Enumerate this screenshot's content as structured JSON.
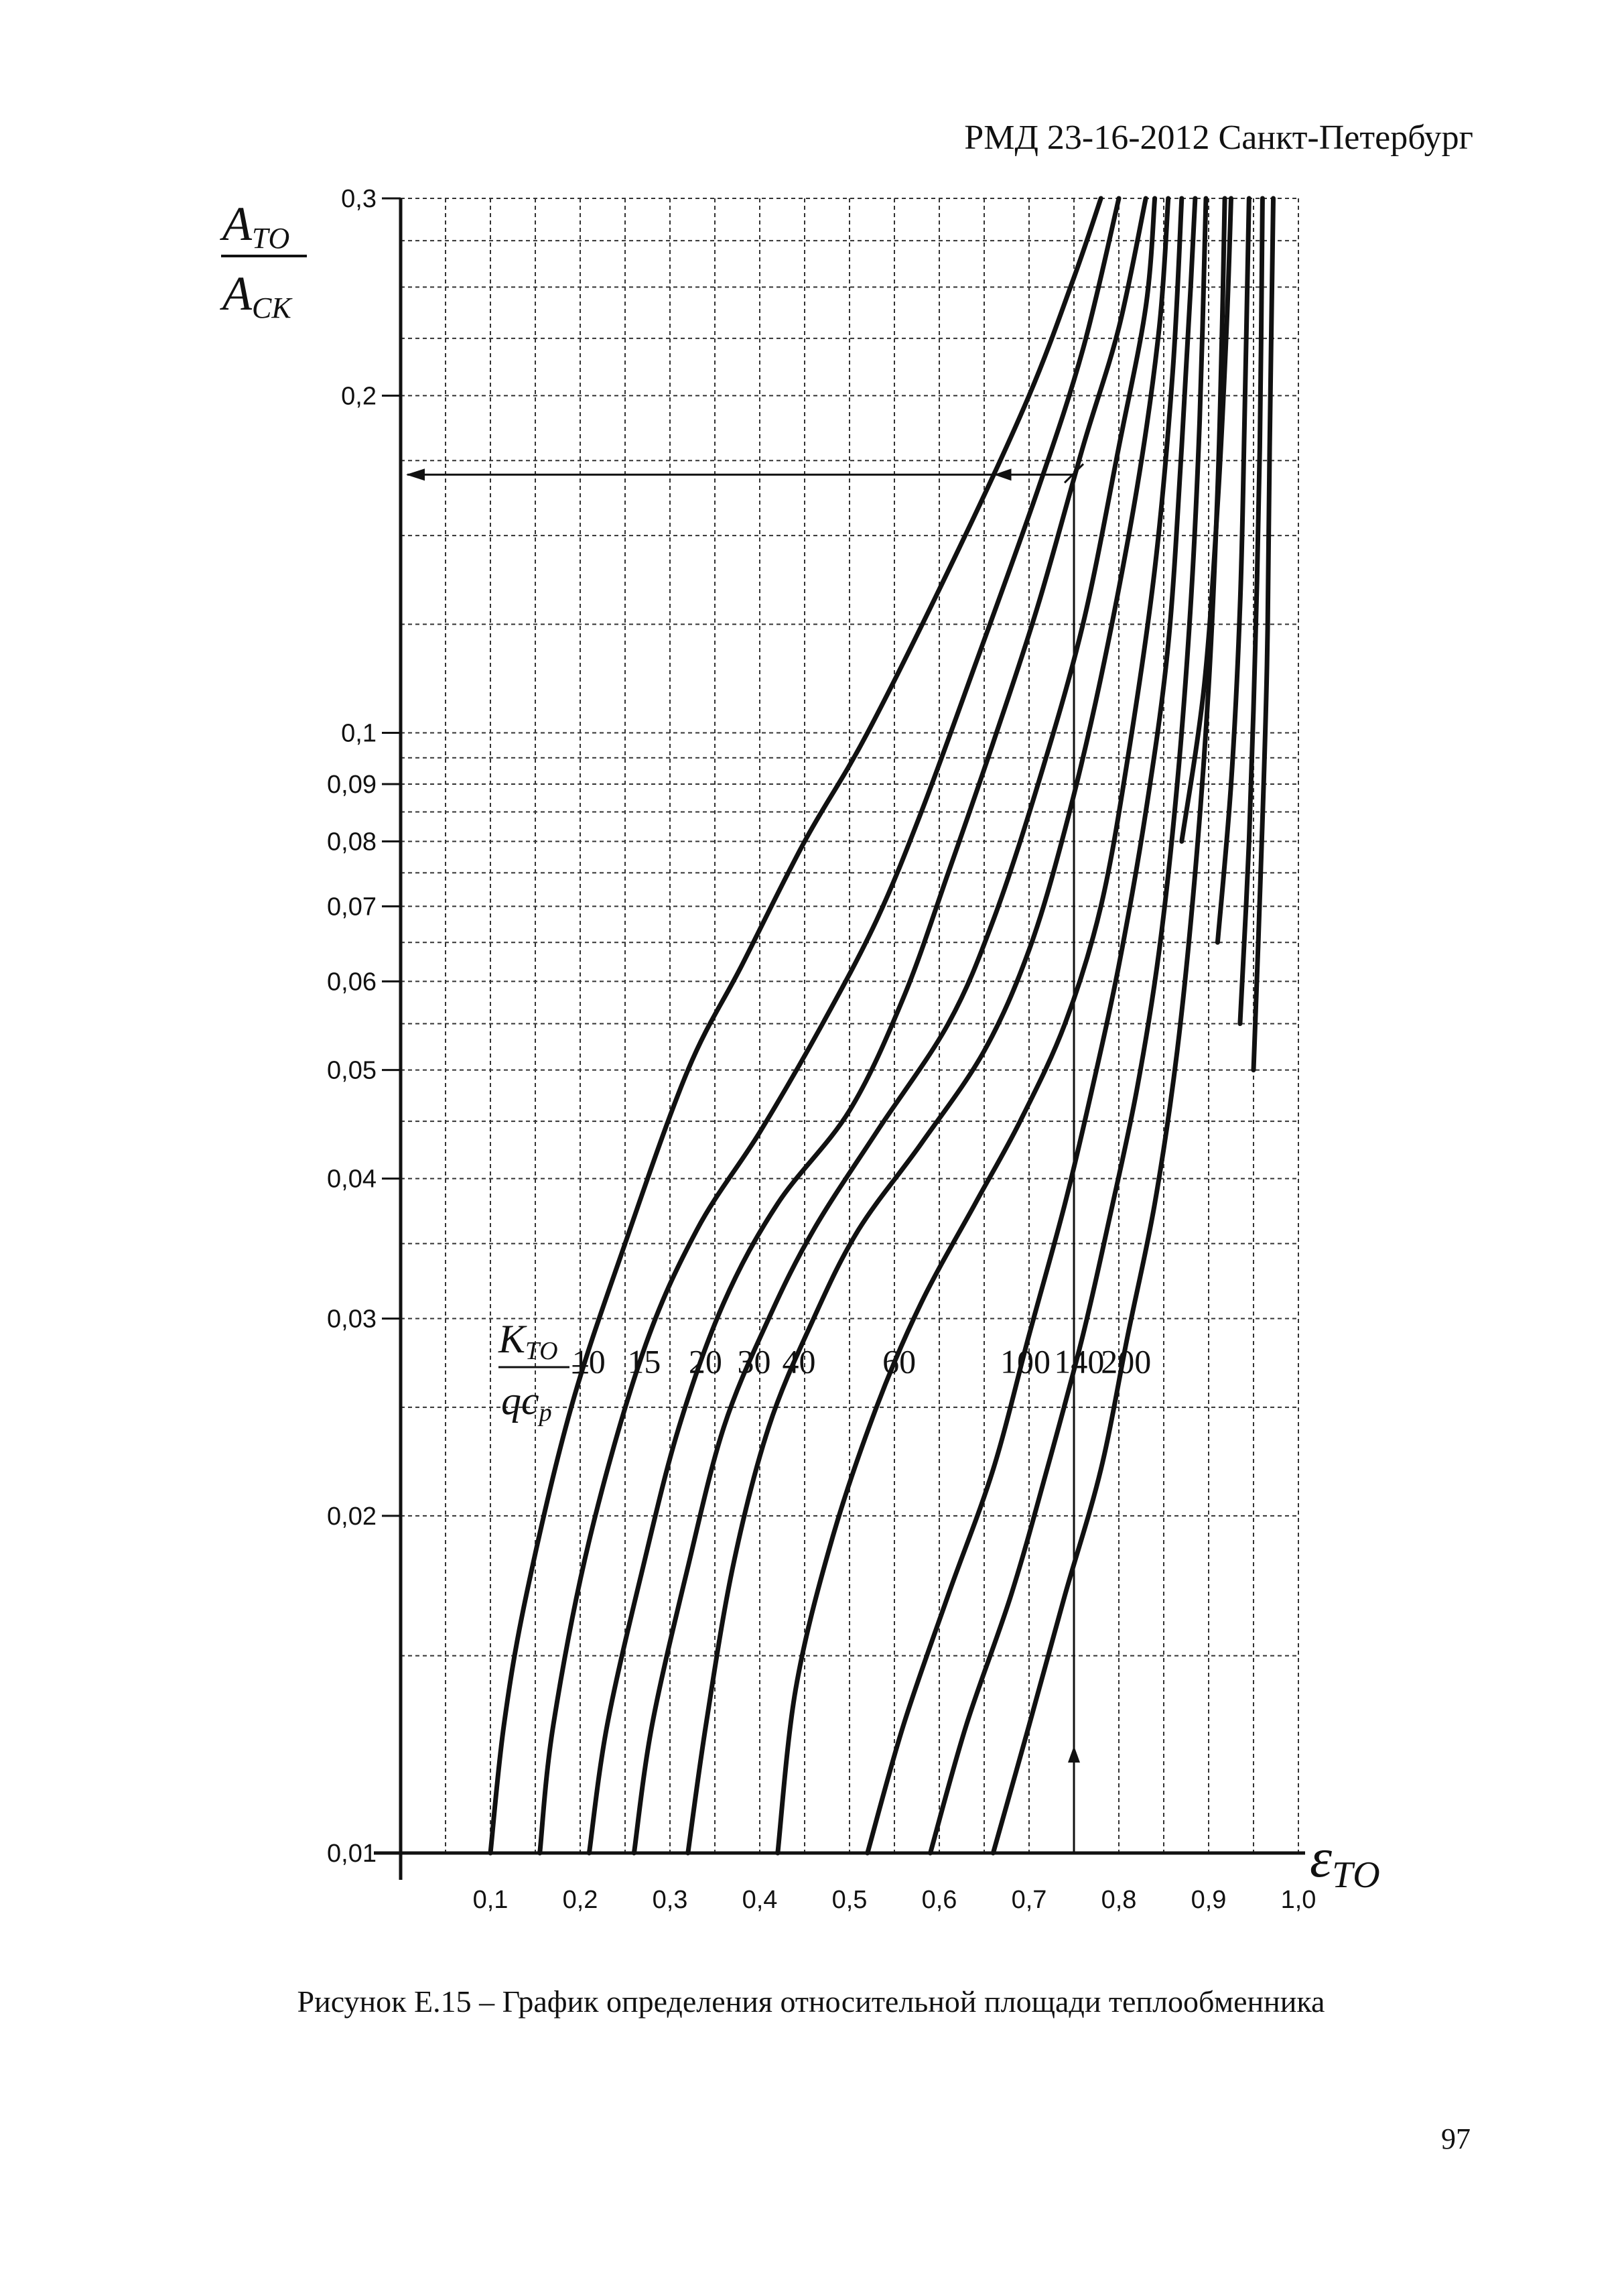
{
  "header": {
    "document_id": "РМД 23-16-2012 Санкт-Петербург"
  },
  "caption": {
    "text": "Рисунок Е.15 – График определения относительной площади теплообменника"
  },
  "page_number": "97",
  "chart_data": {
    "type": "line",
    "title": "",
    "ylabel": {
      "numerator_base": "A",
      "numerator_sub": "ТО",
      "denominator_base": "A",
      "denominator_sub": "СК"
    },
    "xlabel": {
      "base": "ε",
      "sub": "ТО"
    },
    "yscale": "log",
    "xlim": [
      0.0,
      1.0
    ],
    "ylim": [
      0.01,
      0.3
    ],
    "x_ticks": [
      "0,1",
      "0,2",
      "0,3",
      "0,4",
      "0,5",
      "0,6",
      "0,7",
      "0,8",
      "0,9",
      "1,0"
    ],
    "x_tick_values": [
      0.1,
      0.2,
      0.3,
      0.4,
      0.5,
      0.6,
      0.7,
      0.8,
      0.9,
      1.0
    ],
    "y_ticks": [
      "0,01",
      "0,02",
      "0,03",
      "0,04",
      "0,05",
      "0,06",
      "0,07",
      "0,08",
      "0,09",
      "0,1",
      "0,2",
      "0,3"
    ],
    "y_tick_values": [
      0.01,
      0.02,
      0.03,
      0.04,
      0.05,
      0.06,
      0.07,
      0.08,
      0.09,
      0.1,
      0.2,
      0.3
    ],
    "grid": true,
    "parameter_label": {
      "numerator_base": "K",
      "numerator_sub": "ТО",
      "denominator_base": "qc",
      "denominator_sub": "p",
      "prefix": "="
    },
    "series": [
      {
        "name": "10",
        "points": [
          [
            0.1,
            0.01
          ],
          [
            0.115,
            0.013
          ],
          [
            0.14,
            0.017
          ],
          [
            0.19,
            0.025
          ],
          [
            0.25,
            0.035
          ],
          [
            0.32,
            0.05
          ],
          [
            0.38,
            0.062
          ],
          [
            0.45,
            0.08
          ],
          [
            0.52,
            0.1
          ],
          [
            0.62,
            0.145
          ],
          [
            0.7,
            0.2
          ],
          [
            0.75,
            0.255
          ],
          [
            0.78,
            0.3
          ]
        ]
      },
      {
        "name": "15",
        "points": [
          [
            0.155,
            0.01
          ],
          [
            0.17,
            0.013
          ],
          [
            0.21,
            0.019
          ],
          [
            0.27,
            0.028
          ],
          [
            0.33,
            0.036
          ],
          [
            0.4,
            0.044
          ],
          [
            0.47,
            0.055
          ],
          [
            0.53,
            0.068
          ],
          [
            0.58,
            0.085
          ],
          [
            0.64,
            0.115
          ],
          [
            0.71,
            0.165
          ],
          [
            0.76,
            0.22
          ],
          [
            0.8,
            0.3
          ]
        ]
      },
      {
        "name": "20",
        "points": [
          [
            0.21,
            0.01
          ],
          [
            0.23,
            0.013
          ],
          [
            0.27,
            0.018
          ],
          [
            0.31,
            0.024
          ],
          [
            0.36,
            0.031
          ],
          [
            0.42,
            0.038
          ],
          [
            0.5,
            0.046
          ],
          [
            0.56,
            0.058
          ],
          [
            0.61,
            0.075
          ],
          [
            0.66,
            0.098
          ],
          [
            0.71,
            0.13
          ],
          [
            0.76,
            0.18
          ],
          [
            0.8,
            0.23
          ],
          [
            0.83,
            0.3
          ]
        ]
      },
      {
        "name": "30",
        "points": [
          [
            0.26,
            0.01
          ],
          [
            0.28,
            0.013
          ],
          [
            0.32,
            0.018
          ],
          [
            0.36,
            0.024
          ],
          [
            0.41,
            0.03
          ],
          [
            0.46,
            0.036
          ],
          [
            0.53,
            0.044
          ],
          [
            0.61,
            0.055
          ],
          [
            0.66,
            0.068
          ],
          [
            0.71,
            0.09
          ],
          [
            0.76,
            0.125
          ],
          [
            0.8,
            0.18
          ],
          [
            0.83,
            0.24
          ],
          [
            0.84,
            0.3
          ]
        ]
      },
      {
        "name": "40",
        "points": [
          [
            0.32,
            0.01
          ],
          [
            0.34,
            0.013
          ],
          [
            0.37,
            0.018
          ],
          [
            0.41,
            0.024
          ],
          [
            0.46,
            0.03
          ],
          [
            0.51,
            0.036
          ],
          [
            0.58,
            0.043
          ],
          [
            0.65,
            0.052
          ],
          [
            0.7,
            0.064
          ],
          [
            0.74,
            0.082
          ],
          [
            0.78,
            0.112
          ],
          [
            0.82,
            0.165
          ],
          [
            0.845,
            0.23
          ],
          [
            0.855,
            0.3
          ]
        ]
      },
      {
        "name": "60",
        "points": [
          [
            0.42,
            0.01
          ],
          [
            0.44,
            0.014
          ],
          [
            0.48,
            0.019
          ],
          [
            0.53,
            0.025
          ],
          [
            0.58,
            0.031
          ],
          [
            0.64,
            0.038
          ],
          [
            0.69,
            0.045
          ],
          [
            0.74,
            0.055
          ],
          [
            0.78,
            0.07
          ],
          [
            0.81,
            0.095
          ],
          [
            0.84,
            0.14
          ],
          [
            0.86,
            0.21
          ],
          [
            0.87,
            0.3
          ]
        ]
      },
      {
        "name": "100",
        "points": [
          [
            0.52,
            0.01
          ],
          [
            0.56,
            0.013
          ],
          [
            0.61,
            0.017
          ],
          [
            0.66,
            0.022
          ],
          [
            0.7,
            0.029
          ],
          [
            0.74,
            0.038
          ],
          [
            0.77,
            0.048
          ],
          [
            0.8,
            0.062
          ],
          [
            0.83,
            0.085
          ],
          [
            0.855,
            0.12
          ],
          [
            0.87,
            0.18
          ],
          [
            0.88,
            0.25
          ],
          [
            0.885,
            0.3
          ]
        ]
      },
      {
        "name": "140",
        "points": [
          [
            0.59,
            0.01
          ],
          [
            0.63,
            0.013
          ],
          [
            0.68,
            0.017
          ],
          [
            0.72,
            0.022
          ],
          [
            0.76,
            0.029
          ],
          [
            0.79,
            0.037
          ],
          [
            0.82,
            0.048
          ],
          [
            0.845,
            0.064
          ],
          [
            0.865,
            0.09
          ],
          [
            0.88,
            0.13
          ],
          [
            0.89,
            0.19
          ],
          [
            0.897,
            0.3
          ]
        ]
      },
      {
        "name": "200",
        "points": [
          [
            0.66,
            0.01
          ],
          [
            0.7,
            0.013
          ],
          [
            0.74,
            0.017
          ],
          [
            0.78,
            0.022
          ],
          [
            0.81,
            0.029
          ],
          [
            0.84,
            0.038
          ],
          [
            0.865,
            0.052
          ],
          [
            0.885,
            0.075
          ],
          [
            0.9,
            0.11
          ],
          [
            0.91,
            0.165
          ],
          [
            0.915,
            0.23
          ],
          [
            0.918,
            0.3
          ]
        ]
      },
      {
        "name": "",
        "points": [
          [
            0.87,
            0.08
          ],
          [
            0.895,
            0.11
          ],
          [
            0.91,
            0.16
          ],
          [
            0.92,
            0.23
          ],
          [
            0.925,
            0.3
          ]
        ]
      },
      {
        "name": "",
        "points": [
          [
            0.91,
            0.065
          ],
          [
            0.925,
            0.09
          ],
          [
            0.935,
            0.13
          ],
          [
            0.94,
            0.19
          ],
          [
            0.945,
            0.3
          ]
        ]
      },
      {
        "name": "",
        "points": [
          [
            0.935,
            0.055
          ],
          [
            0.945,
            0.08
          ],
          [
            0.952,
            0.12
          ],
          [
            0.957,
            0.18
          ],
          [
            0.96,
            0.3
          ]
        ]
      },
      {
        "name": "",
        "points": [
          [
            0.95,
            0.05
          ],
          [
            0.958,
            0.075
          ],
          [
            0.965,
            0.115
          ],
          [
            0.968,
            0.18
          ],
          [
            0.972,
            0.3
          ]
        ]
      }
    ],
    "example_path": {
      "x_value": 0.75,
      "y_value": 0.17
    }
  }
}
